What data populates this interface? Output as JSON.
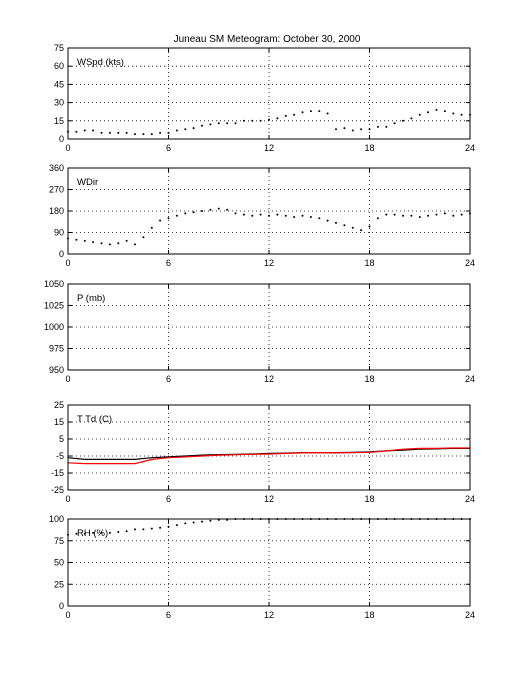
{
  "figure": {
    "title": "Juneau SM Meteogram:    October 30, 2000",
    "background": "#ffffff",
    "axis_color": "#000000",
    "grid_color": "#000000"
  },
  "chart_data": [
    {
      "type": "scatter",
      "label": "WSpd (kts)",
      "xlim": [
        0,
        24
      ],
      "ylim": [
        0,
        75
      ],
      "xticks": [
        0,
        6,
        12,
        18,
        24
      ],
      "yticks": [
        0,
        15,
        30,
        45,
        60,
        75
      ],
      "grid": true,
      "series": [
        {
          "color": "#000000",
          "style": "dots",
          "x": [
            0,
            0.5,
            1,
            1.5,
            2,
            2.5,
            3,
            3.5,
            4,
            4.5,
            5,
            5.5,
            6,
            6.5,
            7,
            7.5,
            8,
            8.5,
            9,
            9.5,
            10,
            10.5,
            11,
            11.5,
            12,
            12.5,
            13,
            13.5,
            14,
            14.5,
            15,
            15.5,
            16,
            16.5,
            17,
            17.5,
            18,
            18.5,
            19,
            19.5,
            20,
            20.5,
            21,
            21.5,
            22,
            22.5,
            23,
            23.5,
            24
          ],
          "y": [
            6,
            6,
            7,
            7,
            5,
            5,
            5,
            5,
            4,
            4,
            4,
            5,
            5,
            7,
            8,
            9,
            11,
            12,
            13,
            13,
            13,
            15,
            15,
            15,
            16,
            17,
            19,
            20,
            22,
            23,
            23,
            21,
            8,
            9,
            7,
            8,
            8,
            10,
            10,
            13,
            15,
            17,
            20,
            22,
            24,
            23,
            21,
            20,
            20
          ]
        }
      ]
    },
    {
      "type": "scatter",
      "label": "WDir",
      "xlim": [
        0,
        24
      ],
      "ylim": [
        0,
        360
      ],
      "xticks": [
        0,
        6,
        12,
        18,
        24
      ],
      "yticks": [
        0,
        90,
        180,
        270,
        360
      ],
      "grid": true,
      "series": [
        {
          "color": "#000000",
          "style": "dots",
          "x": [
            0,
            0.5,
            1,
            1.5,
            2,
            2.5,
            3,
            3.5,
            4,
            4.5,
            5,
            5.5,
            6,
            6.5,
            7,
            7.5,
            8,
            8.5,
            9,
            9.5,
            10,
            10.5,
            11,
            11.5,
            12,
            12.5,
            13,
            13.5,
            14,
            14.5,
            15,
            15.5,
            16,
            16.5,
            17,
            17.5,
            18,
            18.5,
            19,
            19.5,
            20,
            20.5,
            21,
            21.5,
            22,
            22.5,
            23,
            23.5,
            24
          ],
          "y": [
            65,
            60,
            55,
            50,
            45,
            40,
            45,
            55,
            40,
            70,
            110,
            140,
            150,
            160,
            170,
            175,
            180,
            185,
            190,
            185,
            170,
            165,
            160,
            165,
            160,
            165,
            160,
            155,
            160,
            155,
            150,
            140,
            130,
            120,
            110,
            100,
            115,
            150,
            165,
            165,
            160,
            160,
            155,
            160,
            165,
            170,
            160,
            165,
            170
          ]
        }
      ]
    },
    {
      "type": "line",
      "label": "P (mb)",
      "xlim": [
        0,
        24
      ],
      "ylim": [
        950,
        1050
      ],
      "xticks": [
        0,
        6,
        12,
        18,
        24
      ],
      "yticks": [
        950,
        975,
        1000,
        1025,
        1050
      ],
      "grid": true,
      "series": []
    },
    {
      "type": "line",
      "label": "T Td (C)",
      "xlim": [
        0,
        24
      ],
      "ylim": [
        -25,
        25
      ],
      "xticks": [
        0,
        6,
        12,
        18,
        24
      ],
      "yticks": [
        -25,
        -15,
        -5,
        5,
        15,
        25
      ],
      "grid": true,
      "series": [
        {
          "color": "#000000",
          "style": "line",
          "x": [
            0,
            1,
            2,
            3,
            4,
            5,
            6,
            7,
            8,
            9,
            10,
            11,
            12,
            13,
            14,
            15,
            16,
            17,
            18,
            19,
            20,
            21,
            22,
            23,
            24
          ],
          "y": [
            -6,
            -7,
            -7,
            -7,
            -7,
            -6,
            -5.5,
            -5,
            -4.5,
            -4.2,
            -4,
            -3.8,
            -3.5,
            -3.3,
            -3,
            -3,
            -3,
            -2.8,
            -2.5,
            -2,
            -1.5,
            -1,
            -0.8,
            -0.5,
            -0.5
          ]
        },
        {
          "color": "#ff0000",
          "style": "line",
          "x": [
            0,
            1,
            2,
            3,
            4,
            5,
            6,
            7,
            8,
            9,
            10,
            11,
            12,
            13,
            14,
            15,
            16,
            17,
            18,
            19,
            20,
            21,
            22,
            23,
            24
          ],
          "y": [
            -9,
            -9.5,
            -9.5,
            -9.5,
            -9.5,
            -7,
            -6,
            -5.5,
            -5,
            -4.5,
            -4.2,
            -4,
            -3.8,
            -3.5,
            -3.2,
            -3,
            -3.2,
            -3,
            -2.8,
            -2,
            -1,
            -0.5,
            -0.5,
            -0.3,
            -0.3
          ]
        }
      ]
    },
    {
      "type": "scatter",
      "label": "RH (%)",
      "xlim": [
        0,
        24
      ],
      "ylim": [
        0,
        100
      ],
      "xticks": [
        0,
        6,
        12,
        18,
        24
      ],
      "yticks": [
        0,
        25,
        50,
        75,
        100
      ],
      "grid": true,
      "series": [
        {
          "color": "#000000",
          "style": "dots",
          "x": [
            0,
            0.5,
            1,
            1.5,
            2,
            2.5,
            3,
            3.5,
            4,
            4.5,
            5,
            5.5,
            6,
            6.5,
            7,
            7.5,
            8,
            8.5,
            9,
            9.5,
            10,
            10.5,
            11,
            11.5,
            12,
            12.5,
            13,
            13.5,
            14,
            14.5,
            15,
            15.5,
            16,
            16.5,
            17,
            17.5,
            18,
            18.5,
            19,
            19.5,
            20,
            20.5,
            21,
            21.5,
            22,
            22.5,
            23,
            23.5,
            24
          ],
          "y": [
            82,
            83,
            83,
            84,
            84,
            84,
            85,
            86,
            88,
            88,
            89,
            90,
            91,
            93,
            95,
            96,
            97,
            98,
            99,
            99,
            100,
            100,
            100,
            100,
            100,
            100,
            100,
            100,
            100,
            100,
            100,
            100,
            100,
            100,
            100,
            100,
            100,
            100,
            100,
            100,
            100,
            100,
            100,
            100,
            100,
            100,
            100,
            100,
            100
          ]
        }
      ]
    }
  ]
}
